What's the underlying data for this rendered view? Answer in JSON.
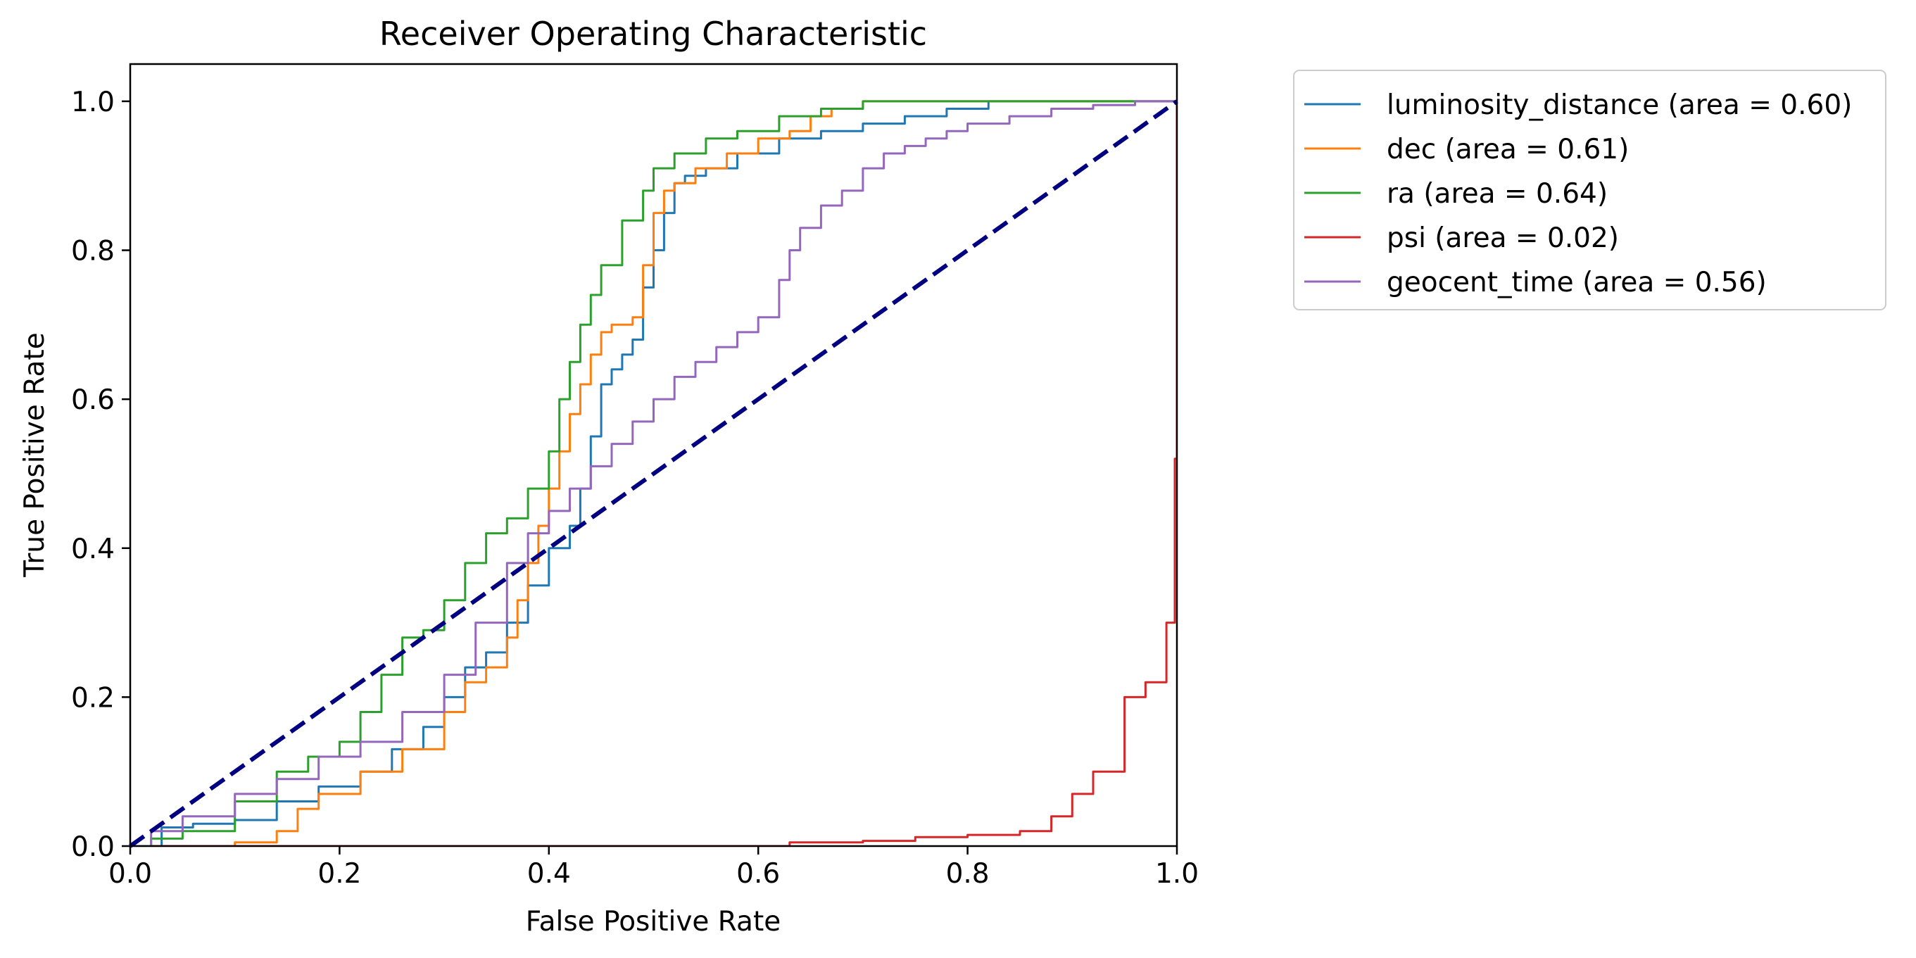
{
  "chart_data": {
    "type": "line",
    "title": "Receiver Operating Characteristic",
    "xlabel": "False Positive Rate",
    "ylabel": "True Positive Rate",
    "xlim": [
      0.0,
      1.0
    ],
    "ylim": [
      0.0,
      1.05
    ],
    "xticks": [
      "0.0",
      "0.2",
      "0.4",
      "0.6",
      "0.8",
      "1.0"
    ],
    "yticks": [
      "0.0",
      "0.2",
      "0.4",
      "0.6",
      "0.8",
      "1.0"
    ],
    "grid": false,
    "legend_position": "outside right, top",
    "series": [
      {
        "name": "luminosity_distance (area = 0.60)",
        "color": "#1f77b4",
        "x": [
          0.0,
          0.03,
          0.06,
          0.1,
          0.14,
          0.18,
          0.22,
          0.25,
          0.28,
          0.3,
          0.32,
          0.34,
          0.36,
          0.38,
          0.4,
          0.42,
          0.43,
          0.44,
          0.45,
          0.46,
          0.47,
          0.48,
          0.49,
          0.5,
          0.51,
          0.52,
          0.53,
          0.55,
          0.58,
          0.62,
          0.66,
          0.7,
          0.74,
          0.78,
          0.82,
          0.9,
          1.0
        ],
        "y": [
          0.0,
          0.025,
          0.03,
          0.035,
          0.06,
          0.08,
          0.1,
          0.13,
          0.16,
          0.2,
          0.24,
          0.26,
          0.3,
          0.35,
          0.4,
          0.43,
          0.48,
          0.55,
          0.62,
          0.64,
          0.66,
          0.68,
          0.75,
          0.8,
          0.85,
          0.89,
          0.9,
          0.91,
          0.93,
          0.95,
          0.96,
          0.97,
          0.98,
          0.99,
          1.0,
          1.0,
          1.0
        ]
      },
      {
        "name": "dec (area = 0.61)",
        "color": "#ff7f0e",
        "x": [
          0.0,
          0.075,
          0.1,
          0.14,
          0.16,
          0.18,
          0.22,
          0.26,
          0.3,
          0.32,
          0.34,
          0.36,
          0.37,
          0.38,
          0.39,
          0.4,
          0.41,
          0.42,
          0.43,
          0.44,
          0.45,
          0.46,
          0.48,
          0.49,
          0.5,
          0.51,
          0.52,
          0.54,
          0.57,
          0.6,
          0.63,
          0.65,
          0.67,
          0.7,
          0.75,
          0.8,
          1.0
        ],
        "y": [
          0.0,
          0.0,
          0.005,
          0.02,
          0.05,
          0.07,
          0.1,
          0.13,
          0.18,
          0.22,
          0.24,
          0.28,
          0.33,
          0.38,
          0.43,
          0.48,
          0.53,
          0.58,
          0.62,
          0.66,
          0.69,
          0.7,
          0.71,
          0.78,
          0.85,
          0.88,
          0.89,
          0.91,
          0.93,
          0.95,
          0.96,
          0.98,
          0.99,
          1.0,
          1.0,
          1.0,
          1.0
        ]
      },
      {
        "name": "ra (area = 0.64)",
        "color": "#2ca02c",
        "x": [
          0.0,
          0.02,
          0.05,
          0.1,
          0.14,
          0.17,
          0.2,
          0.22,
          0.24,
          0.26,
          0.28,
          0.3,
          0.32,
          0.34,
          0.36,
          0.38,
          0.4,
          0.41,
          0.42,
          0.43,
          0.44,
          0.45,
          0.47,
          0.49,
          0.5,
          0.52,
          0.55,
          0.58,
          0.62,
          0.66,
          0.7,
          0.8,
          1.0
        ],
        "y": [
          0.0,
          0.01,
          0.02,
          0.06,
          0.1,
          0.12,
          0.14,
          0.18,
          0.23,
          0.28,
          0.29,
          0.33,
          0.38,
          0.42,
          0.44,
          0.48,
          0.53,
          0.6,
          0.65,
          0.7,
          0.74,
          0.78,
          0.84,
          0.88,
          0.91,
          0.93,
          0.95,
          0.96,
          0.98,
          0.99,
          1.0,
          1.0,
          1.0
        ]
      },
      {
        "name": "psi (area = 0.02)",
        "color": "#d62728",
        "x": [
          0.0,
          0.63,
          0.7,
          0.75,
          0.8,
          0.85,
          0.88,
          0.9,
          0.92,
          0.95,
          0.97,
          0.99,
          0.998,
          1.0
        ],
        "y": [
          0.0,
          0.005,
          0.007,
          0.012,
          0.015,
          0.02,
          0.04,
          0.07,
          0.1,
          0.2,
          0.22,
          0.3,
          0.52,
          1.0
        ]
      },
      {
        "name": "geocent_time (area = 0.56)",
        "color": "#9467bd",
        "x": [
          0.0,
          0.02,
          0.05,
          0.1,
          0.14,
          0.18,
          0.22,
          0.26,
          0.3,
          0.33,
          0.36,
          0.38,
          0.4,
          0.42,
          0.44,
          0.46,
          0.48,
          0.5,
          0.52,
          0.54,
          0.56,
          0.58,
          0.6,
          0.62,
          0.63,
          0.64,
          0.66,
          0.68,
          0.7,
          0.72,
          0.74,
          0.76,
          0.78,
          0.8,
          0.84,
          0.88,
          0.92,
          0.96,
          1.0
        ],
        "y": [
          0.0,
          0.02,
          0.04,
          0.07,
          0.09,
          0.12,
          0.14,
          0.18,
          0.23,
          0.3,
          0.38,
          0.42,
          0.45,
          0.48,
          0.51,
          0.54,
          0.57,
          0.6,
          0.63,
          0.65,
          0.67,
          0.69,
          0.71,
          0.76,
          0.8,
          0.83,
          0.86,
          0.88,
          0.91,
          0.93,
          0.94,
          0.95,
          0.96,
          0.97,
          0.98,
          0.99,
          0.995,
          1.0,
          1.0
        ]
      }
    ],
    "reference_line": {
      "x": [
        0.0,
        1.0
      ],
      "y": [
        0.0,
        1.0
      ],
      "color": "#000080",
      "style": "dashed"
    }
  }
}
